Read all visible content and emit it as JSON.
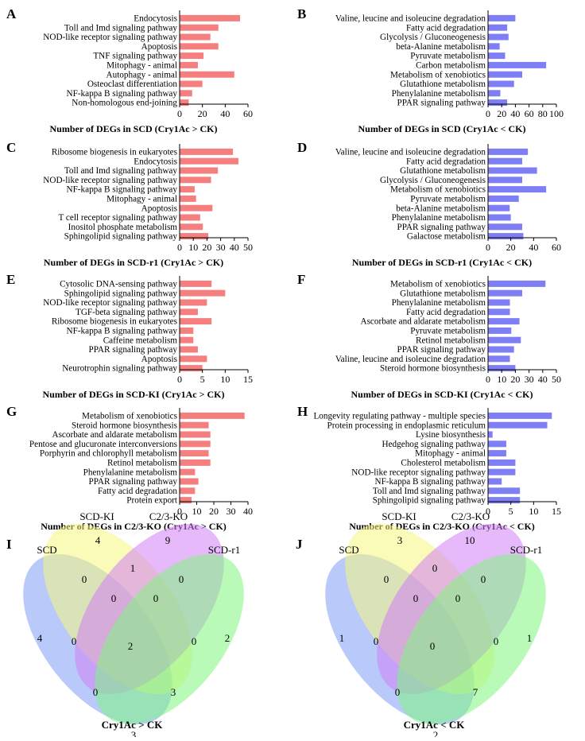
{
  "charts": [
    {
      "type": "bar",
      "panel": "A",
      "xlabel": "Number of DEGs in SCD (Cry1Ac > CK)",
      "xlim": [
        0,
        60
      ],
      "ticks": [
        0,
        20,
        40,
        60
      ],
      "color": "#f57f7f",
      "categories": [
        "Endocytosis",
        "Toll and Imd signaling pathway",
        "NOD-like receptor signaling pathway",
        "Apoptosis",
        "TNF signaling pathway",
        "Mitophagy - animal",
        "Autophagy - animal",
        "Osteoclast differentiation",
        "NF-kappa B signaling pathway",
        "Non-homologous end-joining"
      ],
      "values": [
        53,
        34,
        27,
        34,
        21,
        16,
        48,
        20,
        11,
        8
      ]
    },
    {
      "type": "bar",
      "panel": "B",
      "xlabel": "Number of DEGs in SCD (Cry1Ac < CK)",
      "xlim": [
        0,
        100
      ],
      "ticks": [
        0,
        20,
        40,
        60,
        80,
        100
      ],
      "color": "#7f7ff5",
      "categories": [
        "Valine, leucine and isoleucine degradation",
        "Fatty acid degradation",
        "Glycolysis / Gluconeogenesis",
        "beta-Alanine metabolism",
        "Pyruvate metabolism",
        "Carbon metabolism",
        "Metabolism of xenobiotics",
        "Glutathione metabolism",
        "Phenylalanine metabolism",
        "PPAR signaling pathway"
      ],
      "values": [
        40,
        28,
        30,
        17,
        25,
        85,
        50,
        38,
        18,
        28
      ]
    },
    {
      "type": "bar",
      "panel": "C",
      "xlabel": "Number of DEGs in SCD-r1 (Cry1Ac > CK)",
      "xlim": [
        0,
        50
      ],
      "ticks": [
        0,
        10,
        20,
        30,
        40,
        50
      ],
      "color": "#f57f7f",
      "categories": [
        "Ribosome biogenesis in eukaryotes",
        "Endocytosis",
        "Toll and Imd signaling pathway",
        "NOD-like receptor signaling pathway",
        "NF-kappa B signaling pathway",
        "Mitophagy - animal",
        "Apoptosis",
        "T cell receptor signaling pathway",
        "Inositol phosphate metabolism",
        "Sphingolipid signaling pathway"
      ],
      "values": [
        39,
        43,
        28,
        23,
        11,
        12,
        24,
        15,
        17,
        21
      ]
    },
    {
      "type": "bar",
      "panel": "D",
      "xlabel": "Number of DEGs in SCD-r1 (Cry1Ac < CK)",
      "xlim": [
        0,
        60
      ],
      "ticks": [
        0,
        20,
        40,
        60
      ],
      "color": "#7f7ff5",
      "categories": [
        "Valine, leucine and isoleucine degradation",
        "Fatty acid degradation",
        "Glutathione metabolism",
        "Glycolysis / Gluconeogenesis",
        "Metabolism of xenobiotics",
        "Pyruvate metabolism",
        "beta-Alanine metabolism",
        "Phenylalanine metabolism",
        "PPAR signaling pathway",
        "Galactose metabolism"
      ],
      "values": [
        35,
        30,
        43,
        30,
        51,
        27,
        19,
        20,
        30,
        31
      ]
    },
    {
      "type": "bar",
      "panel": "E",
      "xlabel": "Number of DEGs in SCD-KI (Cry1Ac > CK)",
      "xlim": [
        0,
        15
      ],
      "ticks": [
        0,
        5,
        10,
        15
      ],
      "color": "#f57f7f",
      "categories": [
        "Cytosolic DNA-sensing pathway",
        "Sphingolipid signaling pathway",
        "NOD-like receptor signaling pathway",
        "TGF-beta signaling pathway",
        "Ribosome biogenesis in eukaryotes",
        "NF-kappa B signaling pathway",
        "Caffeine metabolism",
        "PPAR signaling pathway",
        "Apoptosis",
        "Neurotrophin signaling pathway"
      ],
      "values": [
        7,
        10,
        6,
        4,
        7,
        3,
        3,
        4,
        6,
        5
      ]
    },
    {
      "type": "bar",
      "panel": "F",
      "xlabel": "Number of DEGs in SCD-KI (Cry1Ac < CK)",
      "xlim": [
        0,
        50
      ],
      "ticks": [
        0,
        10,
        20,
        30,
        40,
        50
      ],
      "color": "#7f7ff5",
      "categories": [
        "Metabolism of xenobiotics",
        "Glutathione metabolism",
        "Phenylalanine metabolism",
        "Fatty acid degradation",
        "Ascorbate and aldarate metabolism",
        "Pyruvate metabolism",
        "Retinol metabolism",
        "PPAR signaling pathway",
        "Valine, leucine and isoleucine degradation",
        "Steroid hormone biosynthesis"
      ],
      "values": [
        42,
        25,
        16,
        16,
        23,
        17,
        24,
        19,
        16,
        20
      ]
    },
    {
      "type": "bar",
      "panel": "G",
      "xlabel": "Number of DEGs in C2/3-KO (Cry1Ac > CK)",
      "xlim": [
        0,
        40
      ],
      "ticks": [
        0,
        10,
        20,
        30,
        40
      ],
      "color": "#f57f7f",
      "categories": [
        "Metabolism of xenobiotics",
        "Steroid hormone biosynthesis",
        "Ascorbate and aldarate metabolism",
        "Pentose and glucuronate interconversions",
        "Porphyrin and chlorophyll metabolism",
        "Retinol metabolism",
        "Phenylalanine metabolism",
        "PPAR signaling pathway",
        "Fatty acid degradation",
        "Protein export"
      ],
      "values": [
        38,
        17,
        18,
        18,
        17,
        18,
        9,
        11,
        9,
        7
      ]
    },
    {
      "type": "bar",
      "panel": "H",
      "xlabel": "Number of DEGs in C2/3-KO (Cry1Ac < CK)",
      "xlim": [
        0,
        15
      ],
      "ticks": [
        0,
        5,
        10,
        15
      ],
      "color": "#7f7ff5",
      "categories": [
        "Longevity regulating pathway - multiple species",
        "Protein processing in endoplasmic reticulum",
        "Lysine biosynthesis",
        "Hedgehog signaling pathway",
        "Mitophagy - animal",
        "Cholesterol metabolism",
        "NOD-like receptor signaling pathway",
        "NF-kappa B signaling pathway",
        "Toll and Imd signaling pathway",
        "Sphingolipid signaling pathway"
      ],
      "values": [
        14,
        13,
        1,
        4,
        4,
        6,
        6,
        3,
        7,
        7
      ]
    }
  ],
  "venns": [
    {
      "type": "venn",
      "panel": "I",
      "title": "Cry1Ac > CK",
      "sets": [
        "SCD",
        "SCD-KI",
        "C2/3-KO",
        "SCD-r1"
      ],
      "colors": [
        "#7f9ff5",
        "#f5f57f",
        "#d27ff5",
        "#7ff57f"
      ],
      "regions": [
        "4",
        "4",
        "9",
        "2",
        "0",
        "1",
        "0",
        "0",
        "0",
        "0",
        "0",
        "2",
        "0",
        "3",
        "3"
      ]
    },
    {
      "type": "venn",
      "panel": "J",
      "title": "Cry1Ac < CK",
      "sets": [
        "SCD",
        "SCD-KI",
        "C2/3-KO",
        "SCD-r1"
      ],
      "colors": [
        "#7f9ff5",
        "#f5f57f",
        "#d27ff5",
        "#7ff57f"
      ],
      "regions": [
        "1",
        "3",
        "10",
        "1",
        "0",
        "0",
        "0",
        "0",
        "0",
        "0",
        "0",
        "0",
        "0",
        "7",
        "2"
      ]
    }
  ]
}
